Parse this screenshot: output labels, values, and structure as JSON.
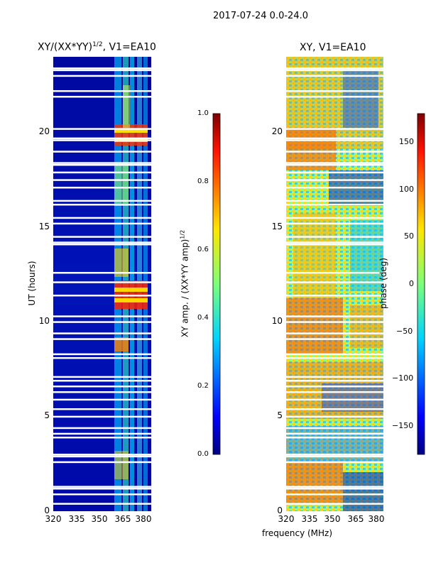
{
  "suptitle": "2017-07-24 0.0-24.0",
  "xlabel_shared": "frequency (MHz)",
  "ylabel": "UT (hours)",
  "chart_data": [
    {
      "type": "heatmap",
      "title": "XY/(XX*YY)$^{1/2}$, V1=EA10",
      "title_text": "XY/(XX*YY)",
      "title_sup": "1/2",
      "title_tail": ", V1=EA10",
      "xlim": [
        320,
        383
      ],
      "ylim": [
        0,
        24
      ],
      "x_ticks": [
        "320",
        "335",
        "350",
        "365",
        "380"
      ],
      "y_ticks": [
        "0",
        "5",
        "10",
        "15",
        "20"
      ],
      "colorbar": {
        "label": "XY amp. / (XX*YY amp)",
        "label_sup": "1/2",
        "ticks": [
          "0.0",
          "0.2",
          "0.4",
          "0.6",
          "0.8",
          "1.0"
        ],
        "range": [
          0,
          1
        ]
      },
      "flagged_hours": [
        0.4,
        0.9,
        1.2,
        1.3,
        2.6,
        2.9,
        3.0,
        3.9,
        4.1,
        4.4,
        5.0,
        5.4,
        5.9,
        6.3,
        6.6,
        6.9,
        7.1,
        8.1,
        8.3,
        9.1,
        9.4,
        10.0,
        10.3,
        11.4,
        12.1,
        12.6,
        14.1,
        14.2,
        14.5,
        15.2,
        15.5,
        16.2,
        16.4,
        17.1,
        17.5,
        17.9,
        18.3,
        18.4,
        19.0,
        19.6,
        19.7,
        20.2,
        21.9,
        22.2,
        23.0,
        23.3,
        23.4
      ]
    },
    {
      "type": "heatmap",
      "title": "XY, V1=EA10",
      "xlim": [
        320,
        383
      ],
      "ylim": [
        0,
        24
      ],
      "x_ticks": [
        "320",
        "335",
        "350",
        "365",
        "380"
      ],
      "y_ticks": [
        "0",
        "5",
        "10",
        "15",
        "20"
      ],
      "colorbar": {
        "label": "phase (deg)",
        "ticks": [
          "−150",
          "−100",
          "−50",
          "0",
          "50",
          "100",
          "150"
        ],
        "range": [
          -180,
          180
        ]
      }
    }
  ]
}
